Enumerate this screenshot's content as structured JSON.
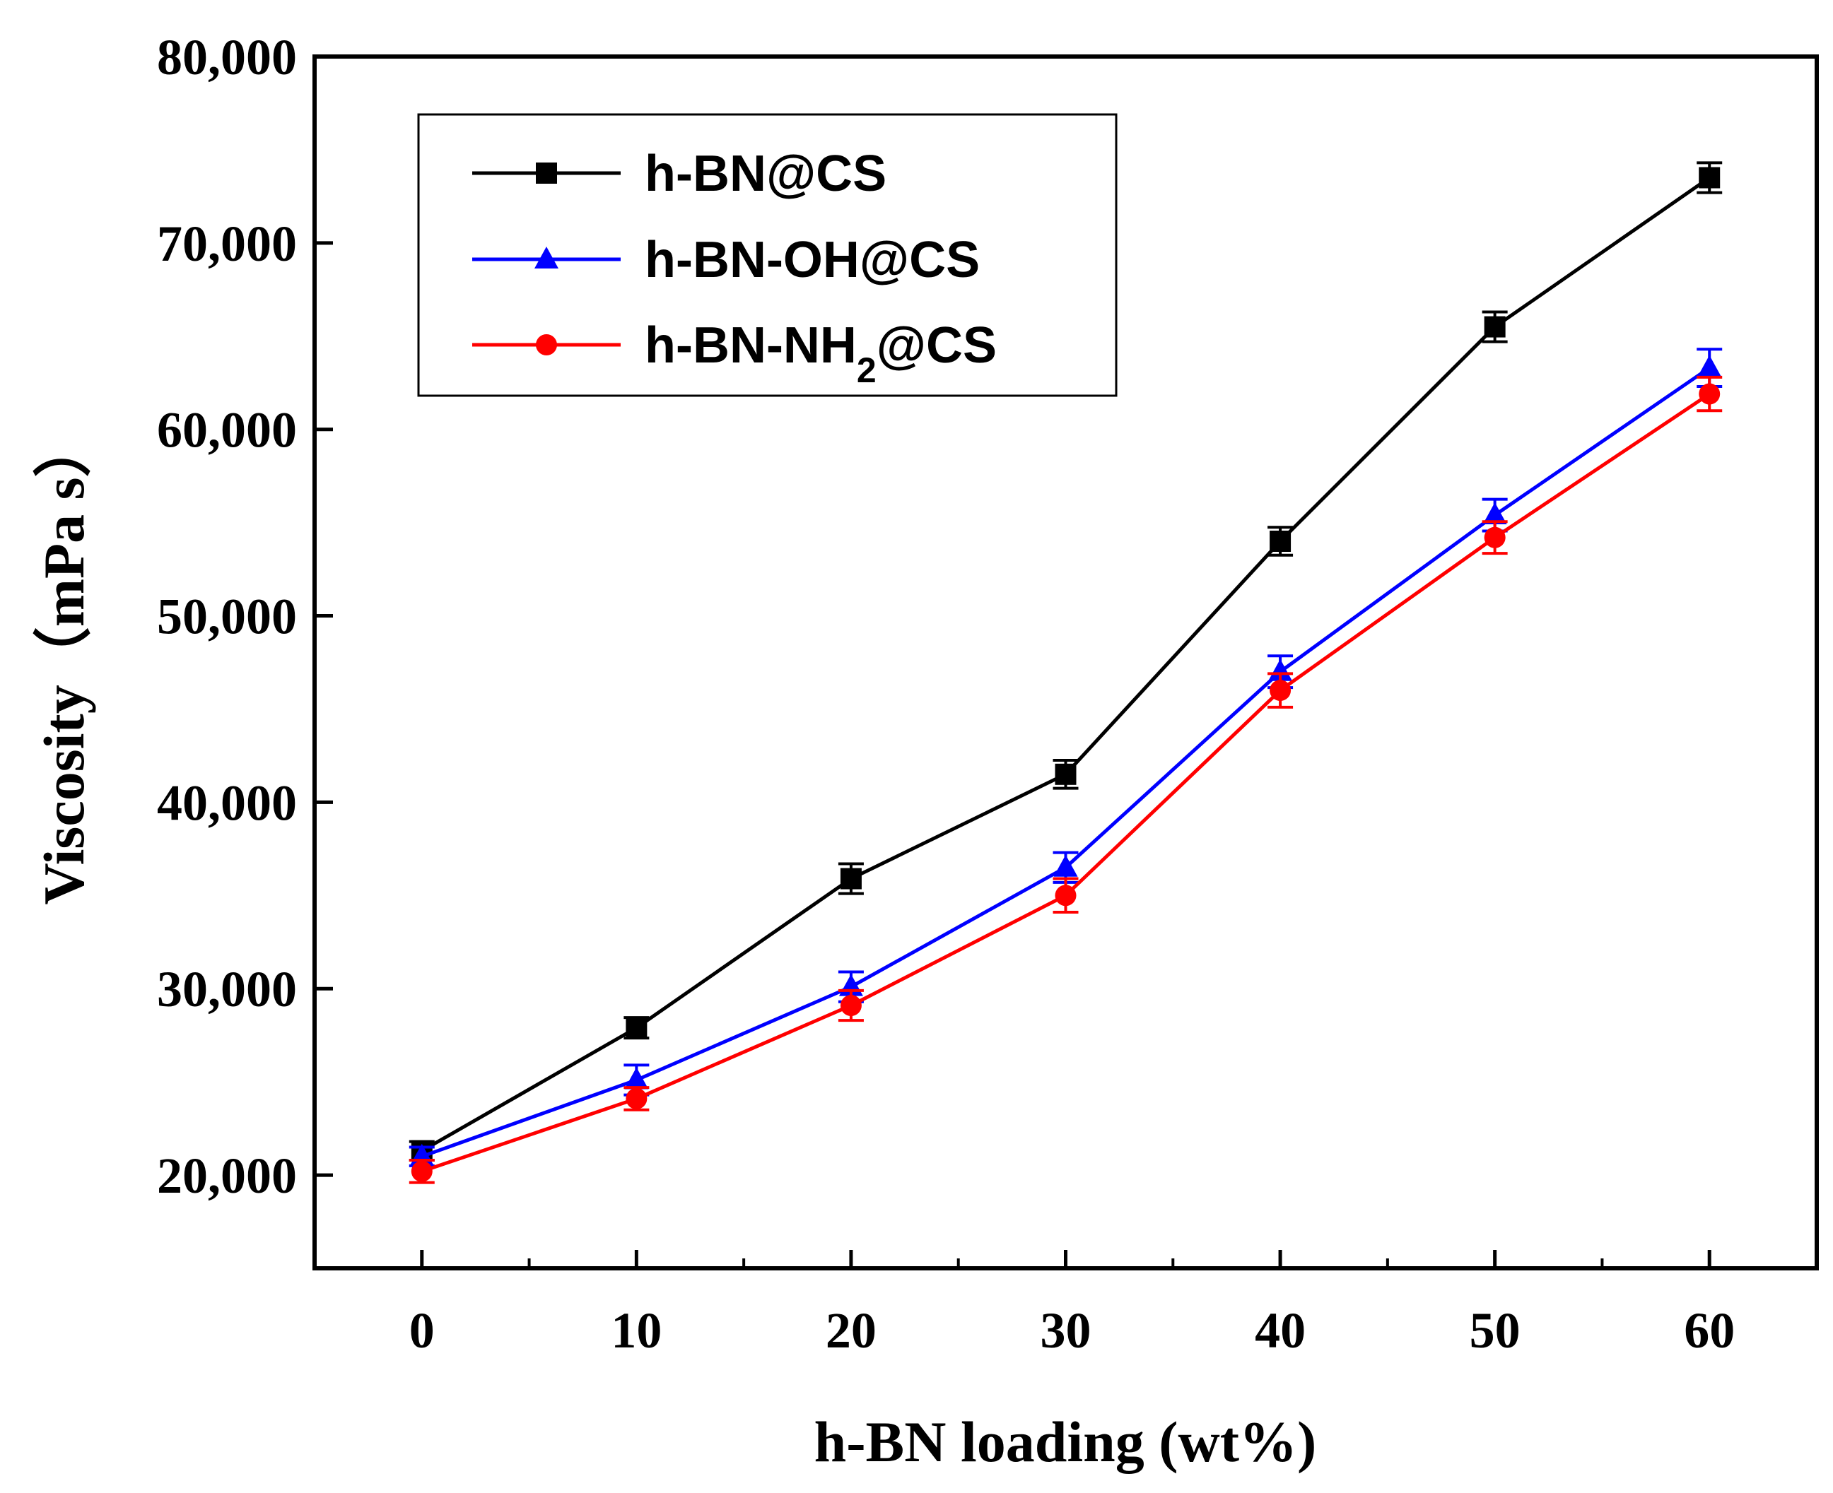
{
  "chart_data": {
    "type": "line",
    "title": "",
    "xlabel": "h-BN loading (wt%)",
    "ylabel": "Viscosity（mPa s）",
    "x": [
      0,
      10,
      20,
      30,
      40,
      50,
      60
    ],
    "x_tick_labels": [
      "0",
      "10",
      "20",
      "30",
      "40",
      "50",
      "60"
    ],
    "xlim": [
      -5,
      65
    ],
    "ylim": [
      15000,
      80000
    ],
    "y_tick_values": [
      20000,
      30000,
      40000,
      50000,
      60000,
      70000,
      80000
    ],
    "y_tick_labels": [
      "20,000",
      "30,000",
      "40,000",
      "50,000",
      "60,000",
      "70,000",
      "80,000"
    ],
    "grid": false,
    "legend_position": "top-left",
    "series": [
      {
        "name": "h-BN@CS",
        "legend_main": "h-BN@CS",
        "legend_sub": "",
        "legend_tail": "",
        "color": "#000000",
        "marker": "square",
        "values": [
          21300,
          27900,
          35900,
          41500,
          54000,
          65500,
          73500
        ],
        "errors": [
          500,
          550,
          800,
          750,
          750,
          800,
          800
        ]
      },
      {
        "name": "h-BN-OH@CS",
        "legend_main": "h-BN-OH@CS",
        "legend_sub": "",
        "legend_tail": "",
        "color": "#0000ff",
        "marker": "triangle",
        "values": [
          21000,
          25100,
          30100,
          36500,
          47000,
          55400,
          63300
        ],
        "errors": [
          500,
          800,
          800,
          800,
          850,
          850,
          1000
        ]
      },
      {
        "name": "h-BN-NH2@CS",
        "legend_main": "h-BN-NH",
        "legend_sub": "2",
        "legend_tail": "@CS",
        "color": "#ff0000",
        "marker": "circle",
        "values": [
          20200,
          24100,
          29100,
          35000,
          46000,
          54200,
          61900
        ],
        "errors": [
          600,
          600,
          800,
          900,
          900,
          850,
          900
        ]
      }
    ]
  }
}
